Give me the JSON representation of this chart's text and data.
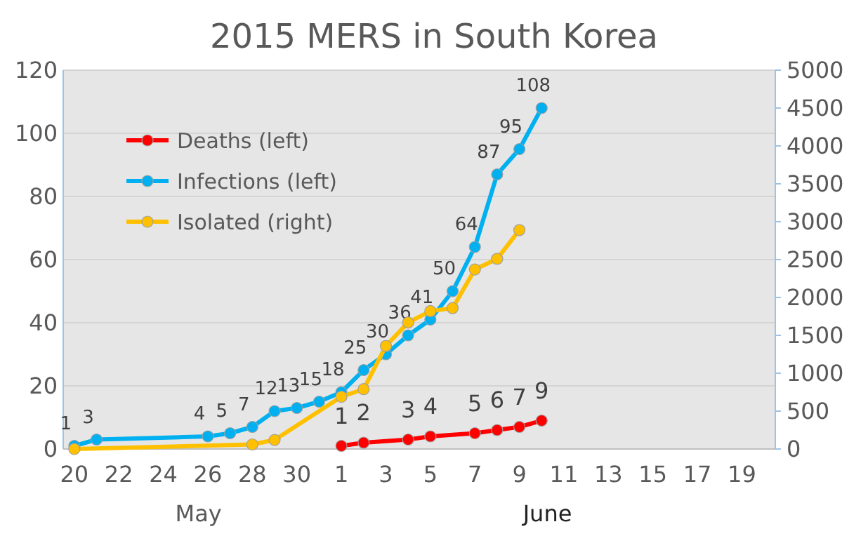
{
  "chart_data": {
    "type": "line",
    "title": "2015 MERS in South Korea",
    "xlim": [
      "2015-05-19T12:00",
      "2015-06-20T12:00"
    ],
    "xticks": [
      {
        "value": "2015-05-20",
        "label": "20"
      },
      {
        "value": "2015-05-22",
        "label": "22"
      },
      {
        "value": "2015-05-24",
        "label": "24"
      },
      {
        "value": "2015-05-26",
        "label": "26"
      },
      {
        "value": "2015-05-28",
        "label": "28"
      },
      {
        "value": "2015-05-30",
        "label": "30"
      },
      {
        "value": "2015-06-01",
        "label": "1"
      },
      {
        "value": "2015-06-03",
        "label": "3"
      },
      {
        "value": "2015-06-05",
        "label": "5"
      },
      {
        "value": "2015-06-07",
        "label": "7"
      },
      {
        "value": "2015-06-09",
        "label": "9"
      },
      {
        "value": "2015-06-11",
        "label": "11"
      },
      {
        "value": "2015-06-13",
        "label": "13"
      },
      {
        "value": "2015-06-15",
        "label": "15"
      },
      {
        "value": "2015-06-17",
        "label": "17"
      },
      {
        "value": "2015-06-19",
        "label": "19"
      }
    ],
    "ylim": [
      0,
      120
    ],
    "yticks": [
      0,
      20,
      40,
      60,
      80,
      100,
      120
    ],
    "y2lim": [
      0,
      5000
    ],
    "y2ticks": [
      0,
      500,
      1000,
      1500,
      2000,
      2500,
      3000,
      3500,
      4000,
      4500,
      5000
    ],
    "grid": "y",
    "legend": "top left",
    "marker": "circle",
    "line_style": "solid",
    "annotations": [
      "May",
      "June"
    ],
    "series": [
      {
        "name": "Deaths (left)",
        "color": "#ff0000",
        "x": [
          "2015-06-01",
          "2015-06-02",
          "2015-06-04",
          "2015-06-05",
          "2015-06-07",
          "2015-06-08",
          "2015-06-09",
          "2015-06-10"
        ],
        "values": [
          1,
          2,
          3,
          4,
          5,
          6,
          7,
          9
        ],
        "value_labels": [
          "1",
          "2",
          "3",
          "4",
          "5",
          "6",
          "7",
          "9"
        ]
      },
      {
        "name": "Infections (left)",
        "color": "#00b0f0",
        "x": [
          "2015-05-20",
          "2015-05-21",
          "2015-05-26",
          "2015-05-27",
          "2015-05-28",
          "2015-05-29",
          "2015-05-30",
          "2015-05-31",
          "2015-06-01",
          "2015-06-02",
          "2015-06-03",
          "2015-06-04",
          "2015-06-05",
          "2015-06-06",
          "2015-06-07",
          "2015-06-08",
          "2015-06-09",
          "2015-06-10"
        ],
        "values": [
          1,
          3,
          4,
          5,
          7,
          12,
          13,
          15,
          18,
          25,
          30,
          36,
          41,
          50,
          64,
          87,
          95,
          108
        ],
        "value_labels": [
          "1",
          "3",
          "4",
          "5",
          "7",
          "12",
          "13",
          "15",
          "18",
          "25",
          "30",
          "36",
          "41",
          "50",
          "64",
          "87",
          "95",
          "108"
        ]
      },
      {
        "name": "Isolated (right)",
        "color": "#ffc000",
        "axis": "y2",
        "x": [
          "2015-05-20",
          "2015-05-28",
          "2015-05-29",
          "2015-06-01",
          "2015-06-02",
          "2015-06-03",
          "2015-06-04",
          "2015-06-05",
          "2015-06-06",
          "2015-06-07",
          "2015-06-08",
          "2015-06-09"
        ],
        "values": [
          0,
          60,
          120,
          690,
          790,
          1360,
          1670,
          1820,
          1860,
          2370,
          2510,
          2890
        ]
      }
    ]
  }
}
